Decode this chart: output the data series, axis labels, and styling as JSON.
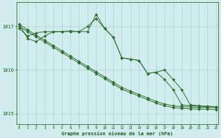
{
  "xlabel": "Graphe pression niveau de la mer (hPa)",
  "hours": [
    0,
    1,
    2,
    3,
    4,
    5,
    6,
    7,
    8,
    9,
    10,
    11,
    12,
    13,
    14,
    15,
    16,
    17,
    18,
    19,
    20,
    21,
    22,
    23
  ],
  "line1": [
    1017.05,
    1016.92,
    1016.8,
    1016.68,
    1016.56,
    1016.44,
    1016.32,
    1016.2,
    1016.08,
    1015.96,
    1015.84,
    1015.72,
    1015.6,
    1015.52,
    1015.44,
    1015.36,
    1015.28,
    1015.22,
    1015.18,
    1015.16,
    1015.15,
    1015.14,
    1015.14,
    1015.13
  ],
  "line2": [
    1017.0,
    1016.88,
    1016.76,
    1016.64,
    1016.52,
    1016.4,
    1016.28,
    1016.16,
    1016.04,
    1015.92,
    1015.8,
    1015.68,
    1015.56,
    1015.48,
    1015.4,
    1015.32,
    1015.24,
    1015.18,
    1015.14,
    1015.12,
    1015.11,
    1015.1,
    1015.1,
    1015.09
  ],
  "line3": [
    1016.95,
    1016.78,
    1016.85,
    1016.88,
    1016.88,
    1016.88,
    1016.9,
    1016.88,
    1017.0,
    1017.18,
    1016.95,
    1016.75,
    1016.28,
    1016.25,
    1016.22,
    1015.92,
    1015.95,
    1016.0,
    1015.78,
    1015.55,
    1015.2,
    1015.18,
    1015.17,
    1015.16
  ],
  "line4": [
    1017.05,
    1016.72,
    1016.65,
    1016.78,
    1016.88,
    1016.88,
    1016.88,
    1016.88,
    1016.88,
    1017.28,
    1016.95,
    1016.75,
    1016.28,
    1016.25,
    1016.22,
    1015.92,
    1015.95,
    1015.78,
    1015.55,
    1015.2,
    1015.18,
    1015.17,
    1015.16,
    1015.16
  ],
  "line_color": "#2d6a2d",
  "bg_color": "#d0ecec",
  "grid_color": "#a8d4d4",
  "axis_color": "#2d6a2d",
  "label_color": "#1a5c1a",
  "ylim_min": 1014.75,
  "ylim_max": 1017.55,
  "yticks": [
    1015,
    1016,
    1017
  ]
}
